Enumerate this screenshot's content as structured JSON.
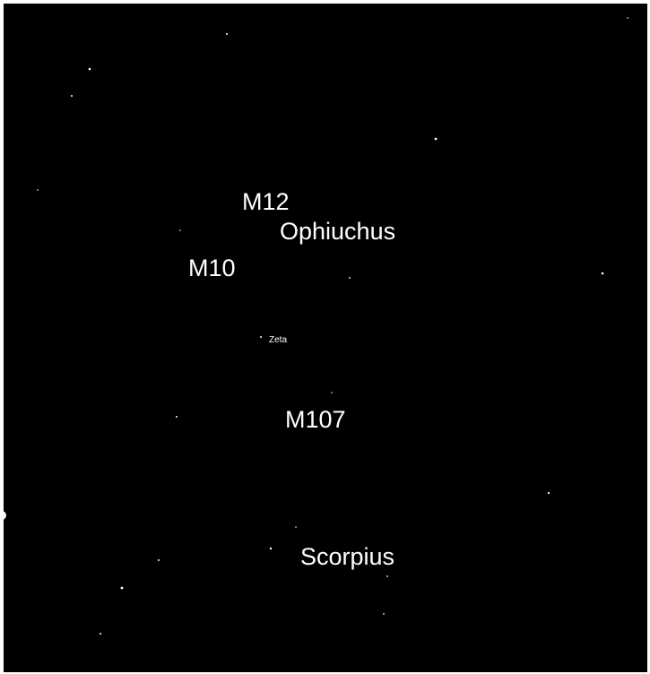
{
  "labels": {
    "m12": "M12",
    "ophiuchus": "Ophiuchus",
    "m10": "M10",
    "zeta": "Zeta",
    "m107": "M107",
    "scorpius": "Scorpius"
  }
}
